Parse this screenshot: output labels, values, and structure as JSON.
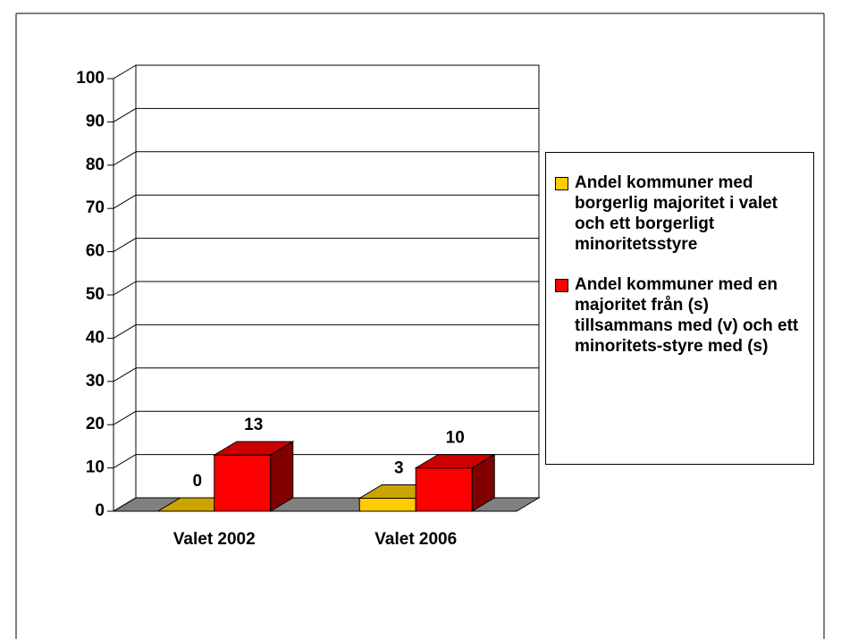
{
  "chart_data": {
    "type": "bar3d",
    "categories": [
      "Valet 2002",
      "Valet 2006"
    ],
    "series": [
      {
        "name": "Andel kommuner med borgerlig majoritet i valet och ett borgerligt minoritetsstyre",
        "color": "#ffcc00",
        "values": [
          0,
          3
        ]
      },
      {
        "name": "Andel kommuner med en majoritet från (s) tillsammans med (v) och ett minoritets-styre med (s)",
        "color": "#ff0000",
        "values": [
          13,
          10
        ]
      }
    ],
    "ylim": [
      0,
      100
    ],
    "yticks": [
      0,
      10,
      20,
      30,
      40,
      50,
      60,
      70,
      80,
      90,
      100
    ],
    "grid": true,
    "legend": "right"
  }
}
